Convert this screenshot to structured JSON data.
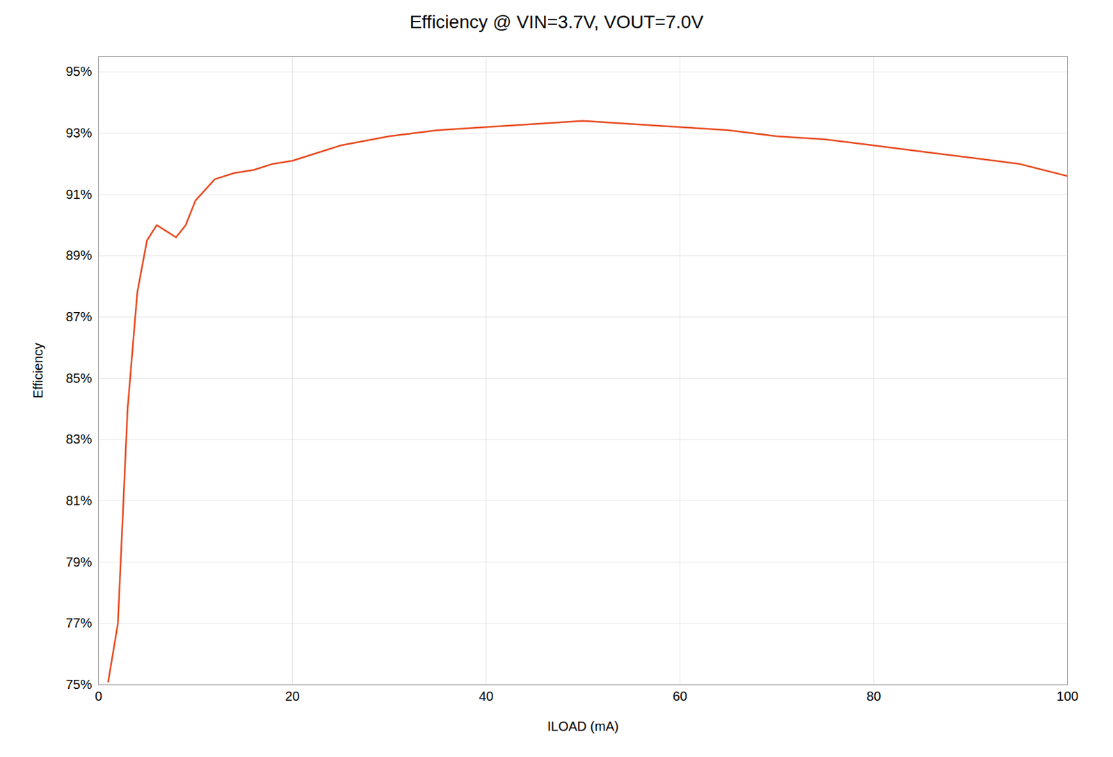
{
  "chart_data": {
    "type": "line",
    "title": "Efficiency @ VIN=3.7V, VOUT=7.0V",
    "xlabel": "ILOAD (mA)",
    "ylabel": "Efficiency",
    "x": [
      1,
      2,
      3,
      4,
      5,
      6,
      7,
      8,
      9,
      10,
      12,
      14,
      16,
      18,
      20,
      25,
      30,
      35,
      40,
      45,
      50,
      55,
      60,
      65,
      70,
      75,
      80,
      85,
      90,
      95,
      100
    ],
    "values": [
      0.751,
      0.77,
      0.84,
      0.878,
      0.895,
      0.9,
      0.898,
      0.896,
      0.9,
      0.908,
      0.915,
      0.917,
      0.918,
      0.92,
      0.921,
      0.926,
      0.929,
      0.931,
      0.932,
      0.933,
      0.934,
      0.933,
      0.932,
      0.931,
      0.929,
      0.928,
      0.926,
      0.924,
      0.922,
      0.92,
      0.916
    ],
    "color": "#E8491E",
    "xlim": [
      0,
      100
    ],
    "ylim": [
      0.75,
      0.955
    ],
    "xticks": [
      0,
      20,
      40,
      60,
      80,
      100
    ],
    "yticks": [
      {
        "value": 0.75,
        "label": "75%"
      },
      {
        "value": 0.77,
        "label": "77%"
      },
      {
        "value": 0.79,
        "label": "79%"
      },
      {
        "value": 0.81,
        "label": "81%"
      },
      {
        "value": 0.83,
        "label": "83%"
      },
      {
        "value": 0.85,
        "label": "85%"
      },
      {
        "value": 0.87,
        "label": "87%"
      },
      {
        "value": 0.89,
        "label": "89%"
      },
      {
        "value": 0.91,
        "label": "91%"
      },
      {
        "value": 0.93,
        "label": "93%"
      },
      {
        "value": 0.95,
        "label": "95%"
      }
    ],
    "grid": true
  }
}
